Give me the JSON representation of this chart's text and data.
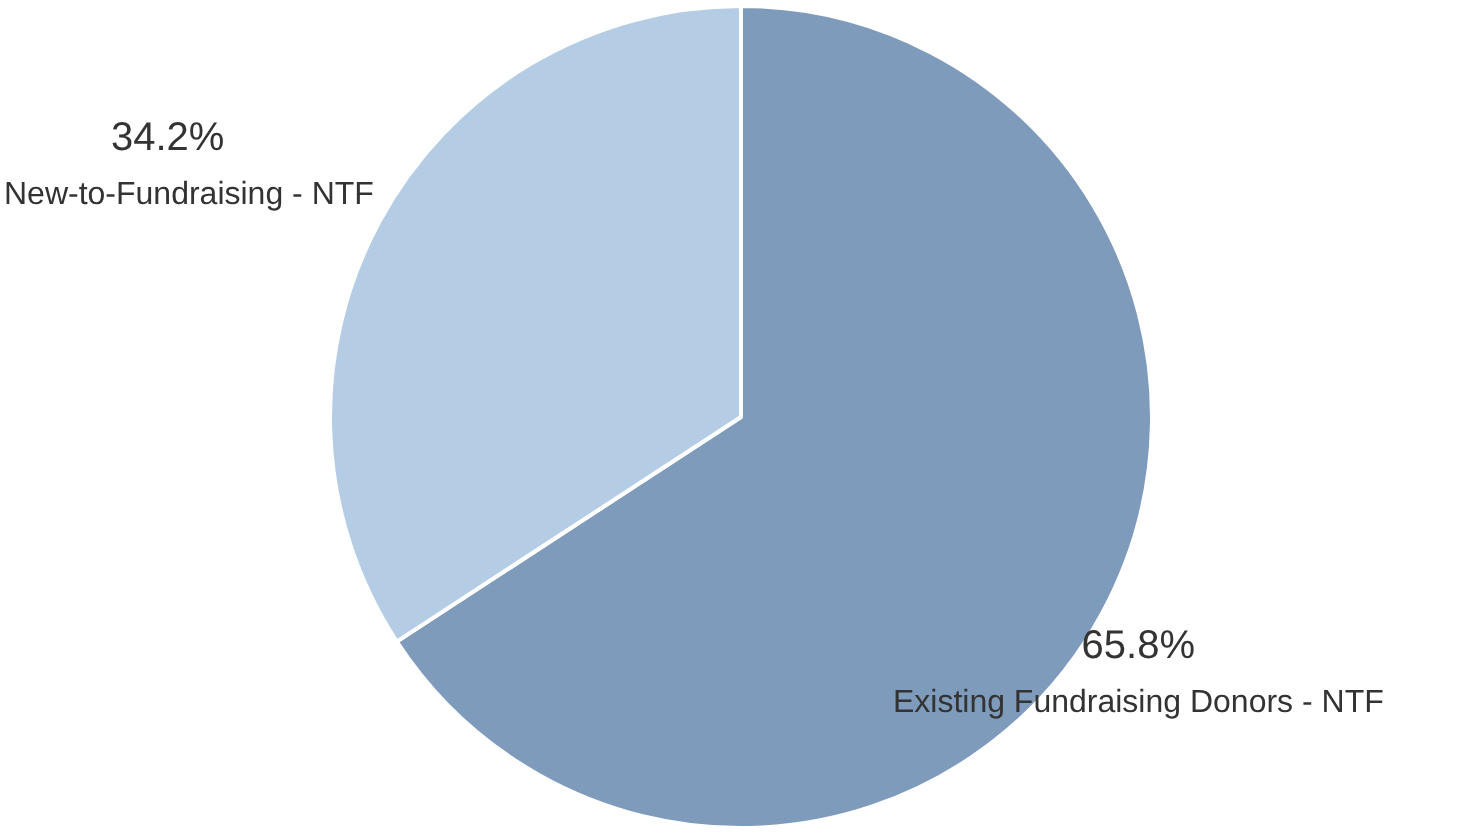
{
  "chart_data": {
    "type": "pie",
    "categories": [
      "Existing Fundraising Donors - NTF",
      "New-to-Fundraising - NTF"
    ],
    "values": [
      65.8,
      34.2
    ],
    "colors": [
      "#7f9bbb",
      "#b4cde5"
    ],
    "value_labels": [
      "65.8%",
      "34.2%"
    ],
    "legend": false
  }
}
